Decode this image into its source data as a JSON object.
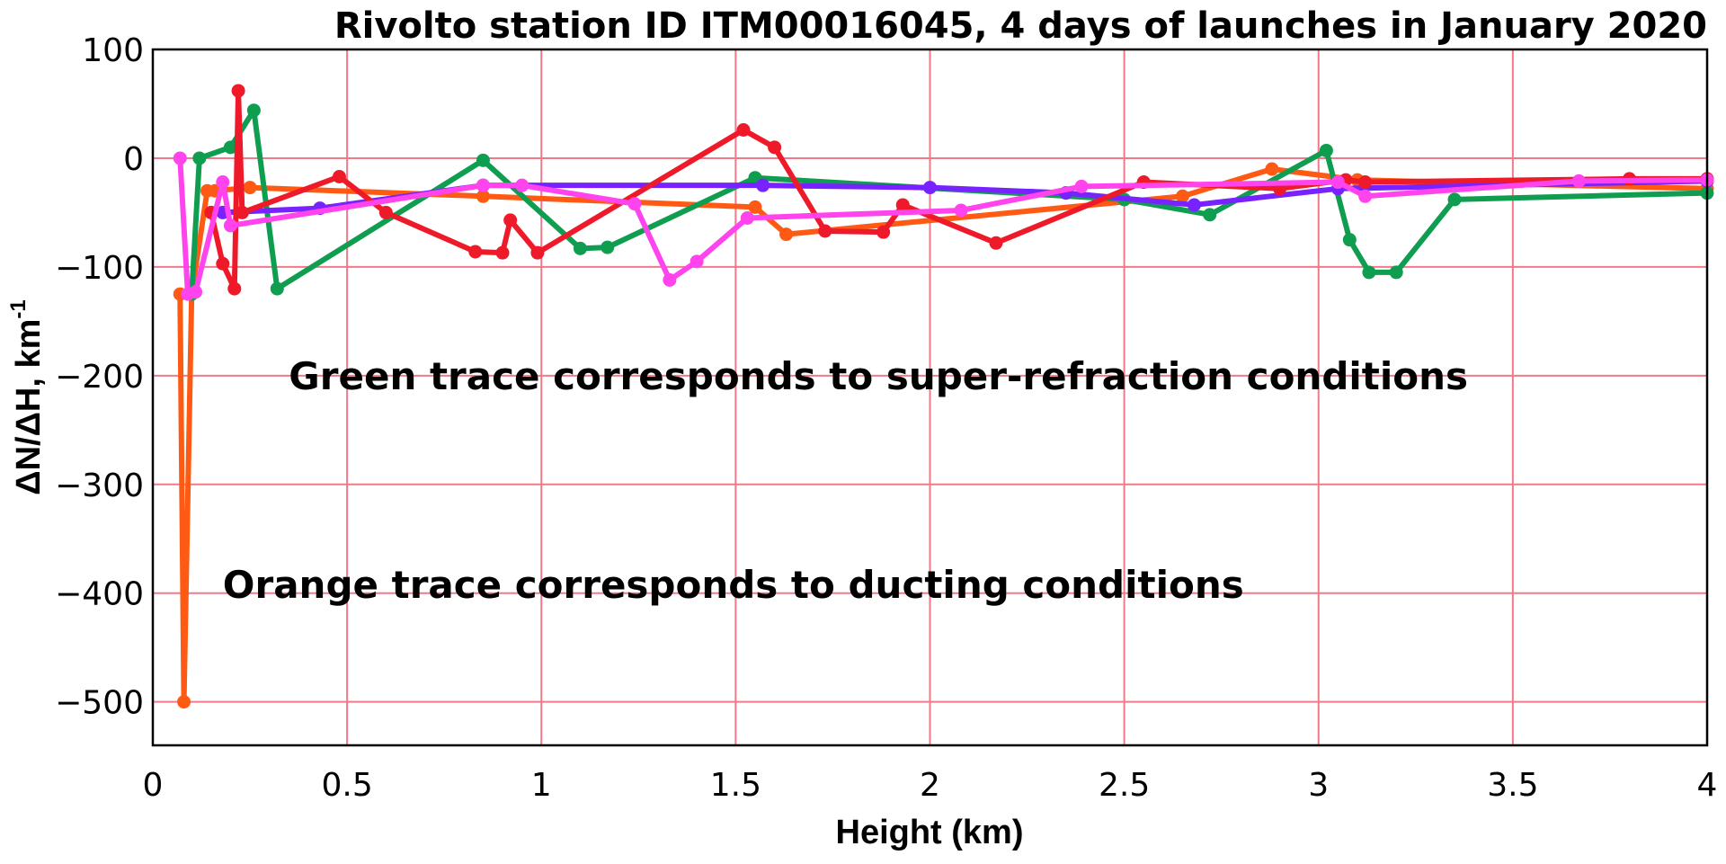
{
  "chart_data": {
    "type": "line",
    "title": "Rivolto station ID ITM00016045, 4 days of launches in January 2020",
    "xlabel": "Height (km)",
    "ylabel": "ΔN/ΔH, km",
    "ylabel_superscript": "-1",
    "xlim": [
      0,
      4
    ],
    "ylim": [
      -540,
      100
    ],
    "xticks": [
      0,
      0.5,
      1,
      1.5,
      2,
      2.5,
      3,
      3.5,
      4
    ],
    "xtick_labels": [
      "0",
      "0.5",
      "1",
      "1.5",
      "2",
      "2.5",
      "3",
      "3.5",
      "4"
    ],
    "yticks": [
      100,
      0,
      -100,
      -200,
      -300,
      -400,
      -500
    ],
    "ytick_labels": [
      "100",
      "0",
      "−100",
      "−200",
      "−300",
      "−400",
      "−500"
    ],
    "grid": true,
    "grid_color": "#f07a8a",
    "annotations": [
      {
        "text": "Green trace corresponds to super-refraction conditions",
        "x": 0.35,
        "y": -200
      },
      {
        "text": "Orange trace corresponds to ducting conditions",
        "x": 0.18,
        "y": -392
      }
    ],
    "series": [
      {
        "color": "#ff5a14",
        "x": [
          0.07,
          0.08,
          0.1,
          0.14,
          0.16,
          0.25,
          0.85,
          1.55,
          1.63,
          2.65,
          2.88,
          3.1,
          4.0
        ],
        "y": [
          -125,
          -500,
          -125,
          -30,
          -30,
          -27,
          -35,
          -45,
          -70,
          -35,
          -10,
          -20,
          -28
        ]
      },
      {
        "color": "#0f9d50",
        "x": [
          0.1,
          0.12,
          0.2,
          0.26,
          0.32,
          0.85,
          1.1,
          1.17,
          1.55,
          2.5,
          2.72,
          3.02,
          3.08,
          3.13,
          3.2,
          3.35,
          4.0
        ],
        "y": [
          -125,
          0,
          10,
          44,
          -120,
          -2,
          -83,
          -82,
          -18,
          -38,
          -52,
          7,
          -75,
          -105,
          -105,
          -38,
          -32
        ]
      },
      {
        "color": "#7722ff",
        "x": [
          0.18,
          0.43,
          0.85,
          1.57,
          2.0,
          2.35,
          2.68,
          3.05,
          4.0
        ],
        "y": [
          -50,
          -46,
          -25,
          -25,
          -27,
          -32,
          -43,
          -28,
          -21
        ]
      },
      {
        "color": "#ee1a2a",
        "x": [
          0.15,
          0.18,
          0.21,
          0.22,
          0.23,
          0.48,
          0.6,
          0.83,
          0.9,
          0.92,
          0.99,
          1.52,
          1.6,
          1.73,
          1.88,
          1.93,
          2.17,
          2.55,
          2.9,
          3.07,
          3.12,
          3.8,
          4.0
        ],
        "y": [
          -50,
          -97,
          -120,
          62,
          -50,
          -17,
          -50,
          -86,
          -87,
          -57,
          -87,
          26,
          10,
          -67,
          -68,
          -43,
          -78,
          -22,
          -28,
          -20,
          -22,
          -19,
          -19
        ]
      },
      {
        "color": "#ff44ee",
        "x": [
          0.07,
          0.09,
          0.11,
          0.18,
          0.2,
          0.85,
          0.95,
          1.24,
          1.33,
          1.4,
          1.53,
          2.08,
          2.39,
          3.05,
          3.12,
          3.67,
          4.0
        ],
        "y": [
          0,
          -125,
          -123,
          -22,
          -62,
          -25,
          -25,
          -42,
          -112,
          -95,
          -55,
          -48,
          -26,
          -22,
          -35,
          -21,
          -20
        ]
      }
    ]
  }
}
